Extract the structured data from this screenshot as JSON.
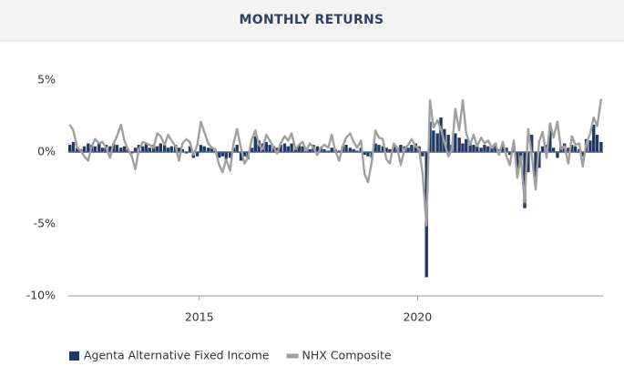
{
  "chart_data": {
    "type": "combo",
    "title": "MONTHLY RETURNS",
    "x": [
      2012.0,
      2012.08,
      2012.17,
      2012.25,
      2012.33,
      2012.42,
      2012.5,
      2012.58,
      2012.67,
      2012.75,
      2012.83,
      2012.92,
      2013.0,
      2013.08,
      2013.17,
      2013.25,
      2013.33,
      2013.42,
      2013.5,
      2013.58,
      2013.67,
      2013.75,
      2013.83,
      2013.92,
      2014.0,
      2014.08,
      2014.17,
      2014.25,
      2014.33,
      2014.42,
      2014.5,
      2014.58,
      2014.67,
      2014.75,
      2014.83,
      2014.92,
      2015.0,
      2015.08,
      2015.17,
      2015.25,
      2015.33,
      2015.42,
      2015.5,
      2015.58,
      2015.67,
      2015.75,
      2015.83,
      2015.92,
      2016.0,
      2016.08,
      2016.17,
      2016.25,
      2016.33,
      2016.42,
      2016.5,
      2016.58,
      2016.67,
      2016.75,
      2016.83,
      2016.92,
      2017.0,
      2017.08,
      2017.17,
      2017.25,
      2017.33,
      2017.42,
      2017.5,
      2017.58,
      2017.67,
      2017.75,
      2017.83,
      2017.92,
      2018.0,
      2018.08,
      2018.17,
      2018.25,
      2018.33,
      2018.42,
      2018.5,
      2018.58,
      2018.67,
      2018.75,
      2018.83,
      2018.92,
      2019.0,
      2019.08,
      2019.17,
      2019.25,
      2019.33,
      2019.42,
      2019.5,
      2019.58,
      2019.67,
      2019.75,
      2019.83,
      2019.92,
      2020.0,
      2020.08,
      2020.17,
      2020.25,
      2020.33,
      2020.42,
      2020.5,
      2020.58,
      2020.67,
      2020.75,
      2020.83,
      2020.92,
      2021.0,
      2021.08,
      2021.17,
      2021.25,
      2021.33,
      2021.42,
      2021.5,
      2021.58,
      2021.67,
      2021.75,
      2021.83,
      2021.92,
      2022.0,
      2022.08,
      2022.17,
      2022.25,
      2022.33,
      2022.42,
      2022.5,
      2022.58,
      2022.67,
      2022.75,
      2022.83,
      2022.92,
      2023.0,
      2023.08,
      2023.17,
      2023.25,
      2023.33,
      2023.42,
      2023.5,
      2023.58,
      2023.67,
      2023.75,
      2023.83,
      2023.92,
      2024.0,
      2024.08,
      2024.17
    ],
    "series": [
      {
        "name": "Agenta Alternative Fixed Income",
        "type": "bar",
        "color": "#1f3864",
        "values": [
          0.5,
          0.7,
          0.3,
          0.2,
          0.4,
          0.6,
          0.5,
          0.4,
          0.6,
          0.3,
          0.5,
          0.4,
          0.6,
          0.5,
          0.3,
          0.4,
          0.2,
          -0.1,
          0.3,
          0.5,
          0.4,
          0.6,
          0.3,
          0.5,
          0.4,
          0.6,
          0.5,
          0.3,
          0.4,
          0.5,
          0.3,
          0.2,
          -0.1,
          0.4,
          -0.4,
          -0.3,
          0.5,
          0.4,
          0.3,
          0.3,
          0.1,
          -0.4,
          -0.3,
          -0.5,
          -0.4,
          0.3,
          0.5,
          -0.6,
          -0.3,
          -0.5,
          0.3,
          1.1,
          0.8,
          0.6,
          0.7,
          0.5,
          0.4,
          0.3,
          0.5,
          0.6,
          0.4,
          0.6,
          0.3,
          0.5,
          0.4,
          0.3,
          0.2,
          0.5,
          0.4,
          0.3,
          0.2,
          0.1,
          0.3,
          0.2,
          0.1,
          0.4,
          0.5,
          0.3,
          0.2,
          0.1,
          0.3,
          -0.2,
          -0.3,
          -0.4,
          0.6,
          0.5,
          0.4,
          0.3,
          0.2,
          0.4,
          0.3,
          0.5,
          0.4,
          0.3,
          0.5,
          0.6,
          0.4,
          -0.3,
          -8.7,
          2.1,
          1.5,
          1.3,
          2.4,
          1.6,
          1.2,
          0.5,
          1.3,
          1.0,
          0.6,
          0.9,
          0.7,
          0.5,
          0.4,
          0.3,
          0.5,
          0.4,
          0.3,
          0.6,
          0.2,
          0.5,
          0.3,
          -0.2,
          0.4,
          -1.2,
          -0.8,
          -3.9,
          -1.4,
          1.2,
          -2.0,
          -1.1,
          0.4,
          0.5,
          1.5,
          0.3,
          -0.4,
          0.4,
          0.6,
          0.3,
          0.5,
          0.4,
          0.2,
          -0.3,
          0.9,
          0.8,
          1.9,
          1.2,
          0.7
        ]
      },
      {
        "name": "NHX Composite",
        "type": "line",
        "color": "#a0a0a0",
        "values": [
          1.9,
          1.5,
          0.3,
          0.1,
          -0.3,
          -0.6,
          0.4,
          0.9,
          0.6,
          0.7,
          0.3,
          -0.4,
          0.6,
          1.1,
          1.9,
          0.8,
          0.2,
          -0.3,
          -1.2,
          0.2,
          0.7,
          0.6,
          0.5,
          0.3,
          1.3,
          1.1,
          0.5,
          1.2,
          0.8,
          0.4,
          -0.6,
          0.6,
          0.9,
          0.7,
          -0.2,
          0.5,
          2.1,
          1.4,
          0.6,
          0.3,
          0.2,
          -0.9,
          -1.4,
          -0.5,
          -1.3,
          0.6,
          1.6,
          0.3,
          -0.8,
          -0.4,
          0.9,
          1.5,
          0.5,
          0.2,
          1.2,
          0.8,
          0.3,
          -0.1,
          0.6,
          1.1,
          0.8,
          1.3,
          0.2,
          0.5,
          0.7,
          0.1,
          0.6,
          0.3,
          -0.2,
          0.3,
          0.5,
          0.3,
          1.2,
          0.1,
          -0.6,
          0.4,
          1.0,
          1.3,
          0.7,
          0.3,
          0.8,
          -1.5,
          -2.1,
          -0.6,
          1.5,
          1.0,
          0.9,
          -0.5,
          -0.8,
          0.6,
          0.3,
          -0.9,
          0.2,
          0.5,
          0.9,
          0.4,
          0.2,
          -1.5,
          -5.1,
          3.6,
          1.7,
          2.2,
          1.6,
          0.7,
          -0.3,
          0.1,
          3.0,
          1.5,
          3.6,
          1.3,
          0.5,
          1.2,
          0.4,
          1.0,
          0.6,
          0.8,
          0.3,
          0.6,
          -0.2,
          0.7,
          -0.3,
          -0.9,
          0.8,
          -1.8,
          -0.3,
          -3.5,
          1.6,
          -0.2,
          -2.6,
          0.7,
          1.4,
          -0.4,
          2.0,
          1.0,
          2.1,
          0.2,
          0.4,
          -0.8,
          1.1,
          0.5,
          0.6,
          -1.0,
          0.6,
          1.3,
          2.4,
          1.8,
          3.7
        ]
      }
    ],
    "xlim": [
      2012,
      2024.25
    ],
    "xticks": [
      2015,
      2020
    ],
    "ylim": [
      -10,
      5
    ],
    "yticks": [
      {
        "value": 5,
        "label": "5%"
      },
      {
        "value": 0,
        "label": "0%"
      },
      {
        "value": -5,
        "label": "-5%"
      },
      {
        "value": -10,
        "label": "-10%"
      }
    ],
    "legend": "bottom"
  }
}
